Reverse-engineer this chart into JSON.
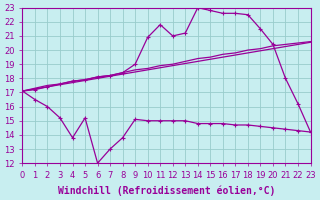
{
  "xlabel": "Windchill (Refroidissement éolien,°C)",
  "bg_color": "#c8eef0",
  "grid_color": "#99cccc",
  "line_color": "#990099",
  "xlim": [
    0,
    23
  ],
  "ylim": [
    12,
    23
  ],
  "xticks": [
    0,
    1,
    2,
    3,
    4,
    5,
    6,
    7,
    8,
    9,
    10,
    11,
    12,
    13,
    14,
    15,
    16,
    17,
    18,
    19,
    20,
    21,
    22,
    23
  ],
  "yticks": [
    12,
    13,
    14,
    15,
    16,
    17,
    18,
    19,
    20,
    21,
    22,
    23
  ],
  "line1_x": [
    0,
    1,
    2,
    3,
    4,
    5,
    6,
    7,
    8,
    9,
    10,
    11,
    12,
    13,
    14,
    15,
    16,
    17,
    18,
    19,
    20,
    21,
    22,
    23
  ],
  "line1_y": [
    17.1,
    16.5,
    16.0,
    15.2,
    13.8,
    15.2,
    12.0,
    13.0,
    13.8,
    15.1,
    15.0,
    15.0,
    15.0,
    15.0,
    14.8,
    14.8,
    14.8,
    14.7,
    14.7,
    14.6,
    14.5,
    14.4,
    14.3,
    14.2
  ],
  "line2_x": [
    0,
    1,
    2,
    3,
    4,
    5,
    6,
    7,
    8,
    9,
    10,
    11,
    12,
    13,
    14,
    15,
    16,
    17,
    18,
    19,
    20,
    21,
    22,
    23
  ],
  "line2_y": [
    17.1,
    17.3,
    17.5,
    17.6,
    17.8,
    17.9,
    18.1,
    18.2,
    18.4,
    18.6,
    18.7,
    18.9,
    19.0,
    19.2,
    19.4,
    19.5,
    19.7,
    19.8,
    20.0,
    20.1,
    20.3,
    20.4,
    20.5,
    20.6
  ],
  "line3_x": [
    0,
    1,
    2,
    3,
    4,
    5,
    6,
    7,
    8,
    9,
    10,
    11,
    12,
    13,
    14,
    15,
    16,
    17,
    18,
    19,
    20,
    21,
    22,
    23
  ],
  "line3_y": [
    17.1,
    17.2,
    17.4,
    17.6,
    17.8,
    17.9,
    18.1,
    18.2,
    18.4,
    19.0,
    20.9,
    21.8,
    21.0,
    21.2,
    23.0,
    22.8,
    22.6,
    22.6,
    22.5,
    21.5,
    20.4,
    18.0,
    16.2,
    14.2
  ],
  "xlabel_fontsize": 7,
  "tick_fontsize": 6,
  "line2b_x": [
    0,
    1,
    2,
    3,
    4,
    5,
    6,
    7,
    8,
    9,
    10,
    11,
    12,
    13,
    14,
    15,
    16,
    17,
    18,
    19,
    20,
    21,
    22,
    23
  ],
  "line2b_y": [
    17.1,
    17.25,
    17.4,
    17.55,
    17.7,
    17.85,
    18.0,
    18.15,
    18.3,
    18.45,
    18.6,
    18.75,
    18.9,
    19.05,
    19.2,
    19.35,
    19.5,
    19.65,
    19.8,
    19.95,
    20.1,
    20.25,
    20.4,
    20.55
  ]
}
